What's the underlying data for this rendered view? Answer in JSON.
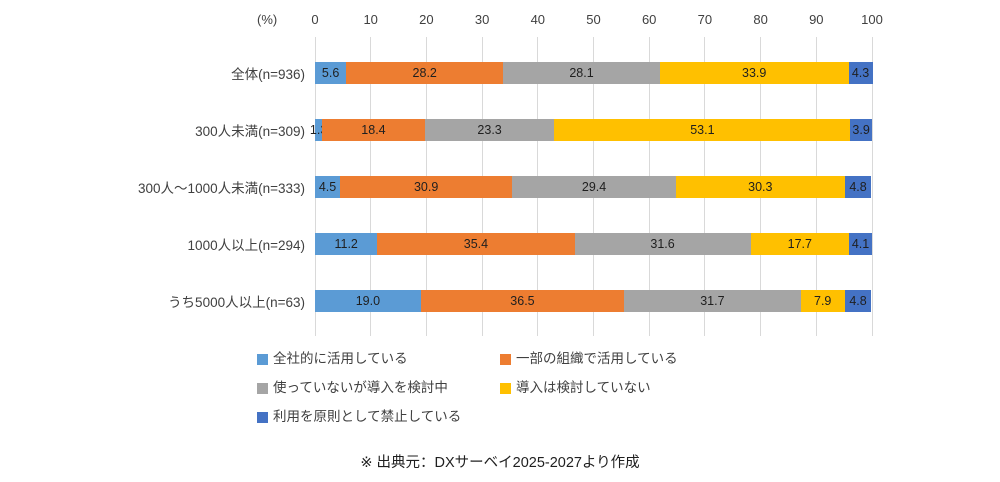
{
  "chart_data": {
    "type": "bar",
    "variant": "horizontal-stacked",
    "unit_label": "(%)",
    "xlim": [
      0,
      100
    ],
    "ticks": [
      0,
      10,
      20,
      30,
      40,
      50,
      60,
      70,
      80,
      90,
      100
    ],
    "grid": true,
    "legend_position": "bottom",
    "categories": [
      "全体(n=936)",
      "300人未満(n=309)",
      "300人～1000人未満(n=333)",
      "1000人以上(n=294)",
      "うち5000人以上(n=63)"
    ],
    "series": [
      {
        "name": "全社的に活用している",
        "color": "#5B9BD5",
        "values": [
          5.6,
          1.3,
          4.5,
          11.2,
          19.0
        ]
      },
      {
        "name": "一部の組織で活用している",
        "color": "#ED7D31",
        "values": [
          28.2,
          18.4,
          30.9,
          35.4,
          36.5
        ]
      },
      {
        "name": "使っていないが導入を検討中",
        "color": "#A5A5A5",
        "values": [
          28.1,
          23.3,
          29.4,
          31.6,
          31.7
        ]
      },
      {
        "name": "導入は検討していない",
        "color": "#FFC000",
        "values": [
          33.9,
          53.1,
          30.3,
          17.7,
          7.9
        ]
      },
      {
        "name": "利用を原則として禁止している",
        "color": "#4472C4",
        "values": [
          4.3,
          3.9,
          4.8,
          4.1,
          4.8
        ]
      }
    ],
    "source_note": "※ 出典元：DXサーベイ2025-2027より作成"
  }
}
